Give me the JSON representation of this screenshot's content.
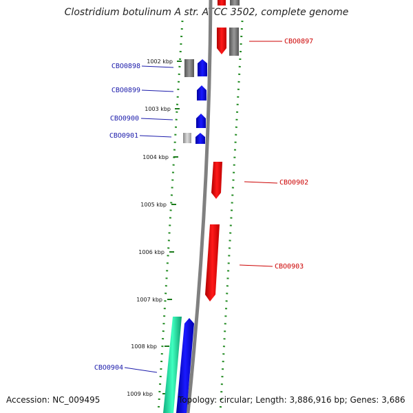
{
  "title": "Clostridium botulinum A str. ATCC 3502, complete genome",
  "accession": "Accession: NC_009495",
  "topology": "Topology: circular; Length: 3,886,916 bp; Genes: 3,686",
  "ticks": [
    "1002 kbp",
    "1003 kbp",
    "1004 kbp",
    "1005 kbp",
    "1006 kbp",
    "1007 kbp",
    "1008 kbp",
    "1009 kbp"
  ],
  "genes": [
    {
      "id": "CBO0897",
      "color": "#cc0000"
    },
    {
      "id": "CBO0898",
      "color": "#1a1aaa"
    },
    {
      "id": "CBO0899",
      "color": "#1a1aaa"
    },
    {
      "id": "CBO0900",
      "color": "#1a1aaa"
    },
    {
      "id": "CBO0901",
      "color": "#1a1aaa"
    },
    {
      "id": "CBO0902",
      "color": "#cc0000"
    },
    {
      "id": "CBO0903",
      "color": "#cc0000"
    },
    {
      "id": "CBO0904",
      "color": "#1a1aaa"
    }
  ],
  "colors": {
    "forward": "#ff0000",
    "reverse": "#0000ff",
    "rna": "#00e0a0",
    "other": "#808080",
    "gc": "#228b22"
  }
}
